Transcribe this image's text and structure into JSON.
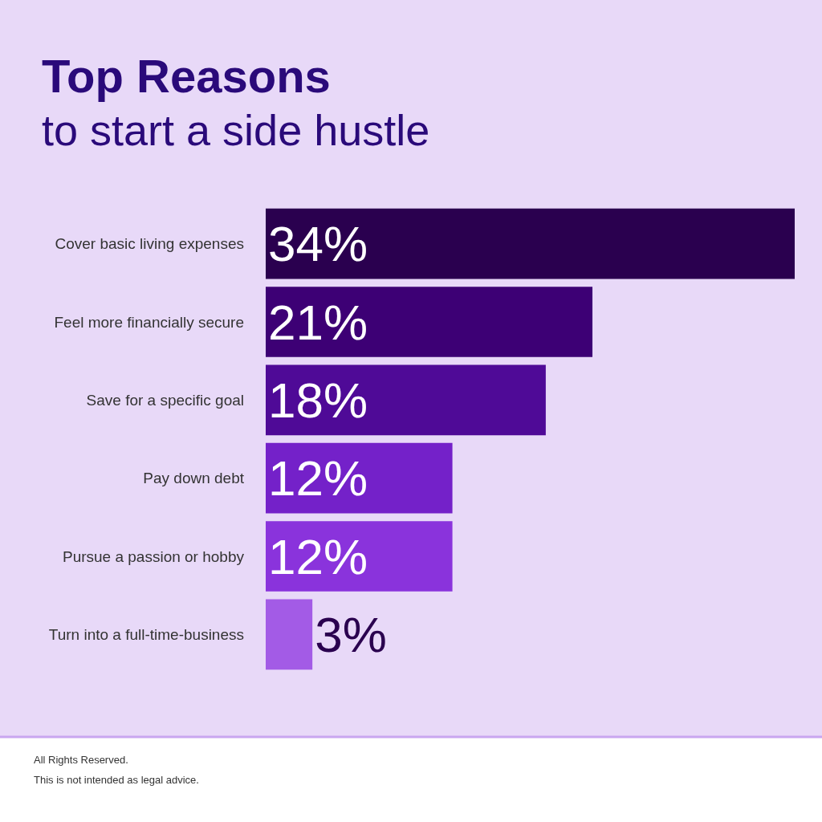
{
  "chart_data": {
    "type": "bar",
    "orientation": "horizontal",
    "title": "Top Reasons",
    "subtitle": "to start a side hustle",
    "categories": [
      "Cover basic living expenses",
      "Feel more financially secure",
      "Save for a specific goal",
      "Pay down debt",
      "Pursue a passion or hobby",
      "Turn into a full-time-business"
    ],
    "values": [
      34,
      21,
      18,
      12,
      12,
      3
    ],
    "value_labels": [
      "34%",
      "21%",
      "18%",
      "12%",
      "12%",
      "3%"
    ],
    "colors": [
      "#2a004f",
      "#3d0075",
      "#4f0a97",
      "#7421c9",
      "#8a33dc",
      "#a35be6"
    ],
    "xlim": [
      0,
      34
    ],
    "tick_labels": "y",
    "annotations": [
      "All Rights Reserved.",
      "This is not intended as legal advice."
    ]
  }
}
